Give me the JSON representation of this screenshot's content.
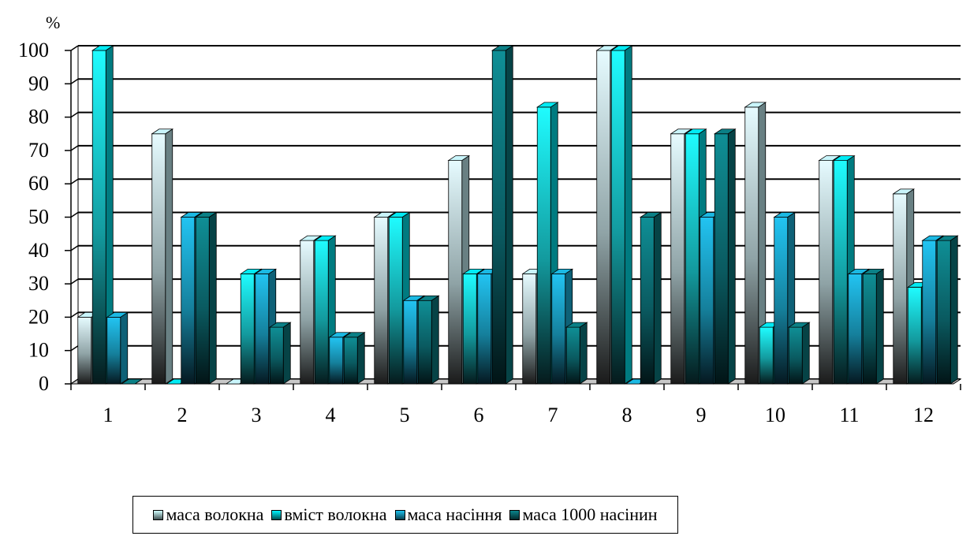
{
  "chart_data": {
    "type": "bar",
    "unit_label": "%",
    "categories": [
      "1",
      "2",
      "3",
      "4",
      "5",
      "6",
      "7",
      "8",
      "9",
      "10",
      "11",
      "12"
    ],
    "ylim": [
      0,
      100
    ],
    "yticks": [
      0,
      10,
      20,
      30,
      40,
      50,
      60,
      70,
      80,
      90,
      100
    ],
    "grid": true,
    "legend_position": "bottom",
    "series": [
      {
        "name": "маса волокна",
        "color": "#bfe9ef",
        "values": [
          20,
          75,
          0,
          43,
          50,
          67,
          33,
          100,
          75,
          83,
          67,
          57
        ]
      },
      {
        "name": "вміст волокна",
        "color": "#00e0e8",
        "values": [
          100,
          0,
          33,
          43,
          50,
          33,
          83,
          100,
          75,
          17,
          67,
          29
        ]
      },
      {
        "name": "маса насіння",
        "color": "#1ab0d8",
        "values": [
          20,
          50,
          33,
          14,
          25,
          33,
          33,
          0,
          50,
          50,
          33,
          43
        ]
      },
      {
        "name": "маса 1000 насінин",
        "color": "#0a7a80",
        "values": [
          0,
          50,
          17,
          14,
          25,
          100,
          17,
          50,
          75,
          17,
          33,
          43
        ]
      }
    ]
  }
}
